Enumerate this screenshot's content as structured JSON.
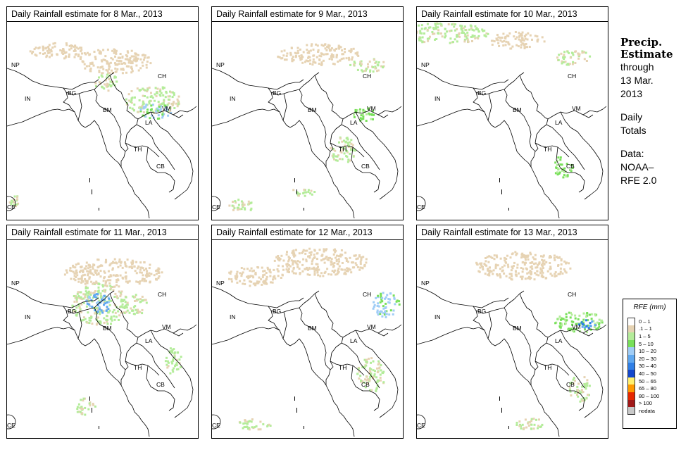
{
  "panels": [
    {
      "title": "Daily Rainfall estimate for  8 Mar., 2013",
      "date": "8 Mar."
    },
    {
      "title": "Daily Rainfall estimate for  9 Mar., 2013",
      "date": "9 Mar."
    },
    {
      "title": "Daily Rainfall estimate for  10 Mar., 2013",
      "date": "10 Mar."
    },
    {
      "title": "Daily Rainfall estimate for  11 Mar., 2013",
      "date": "11 Mar."
    },
    {
      "title": "Daily Rainfall estimate for  12 Mar., 2013",
      "date": "12 Mar."
    },
    {
      "title": "Daily Rainfall estimate for  13 Mar., 2013",
      "date": "13 Mar."
    }
  ],
  "country_labels": {
    "np": "NP",
    "ch": "CH",
    "bg": "BG",
    "in": "IN",
    "bm": "BM",
    "vm": "VM",
    "la": "LA",
    "th": "TH",
    "cb": "CB",
    "ce": "CE"
  },
  "sidebar": {
    "heading_line1": "Precip.",
    "heading_line2": "Estimate",
    "through": "through",
    "end_date_line1": "13 Mar.",
    "end_date_line2": "2013",
    "period_line1": "Daily",
    "period_line2": "Totals",
    "source_line1": "Data:",
    "source_line2": "NOAA–",
    "source_line3": "RFE 2.0"
  },
  "legend": {
    "title": "RFE (mm)",
    "items": [
      {
        "label": "0 – 1",
        "color": "#ffffff"
      },
      {
        "label": ".1 – 1",
        "color": "#e6d3b3"
      },
      {
        "label": "1 – 5",
        "color": "#b4ec9a"
      },
      {
        "label": "5 – 10",
        "color": "#78e05a"
      },
      {
        "label": "10 – 20",
        "color": "#a0cdf6"
      },
      {
        "label": "20 – 30",
        "color": "#5fa8f0"
      },
      {
        "label": "30 – 40",
        "color": "#2f7fe6"
      },
      {
        "label": "40 – 50",
        "color": "#1448cc"
      },
      {
        "label": "50 – 65",
        "color": "#fff06e"
      },
      {
        "label": "65 – 80",
        "color": "#ff9a00"
      },
      {
        "label": "80 – 100",
        "color": "#e62800"
      },
      {
        "label": "> 100",
        "color": "#a01818"
      },
      {
        "label": "nodata",
        "color": "#c8c8c8"
      }
    ]
  }
}
